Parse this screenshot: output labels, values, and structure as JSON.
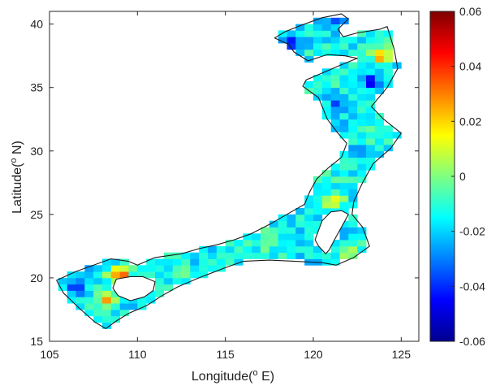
{
  "chart_data": {
    "type": "heatmap",
    "title": "",
    "xlabel": "Longitude(",
    "xlabel_sup": "o",
    "xlabel_tail": " E)",
    "ylabel": "Latitude(",
    "ylabel_sup": "o",
    "ylabel_tail": " N)",
    "xlim": [
      105,
      126
    ],
    "ylim": [
      15,
      41
    ],
    "xticks": [
      {
        "value": 105,
        "label": "105"
      },
      {
        "value": 110,
        "label": "110"
      },
      {
        "value": 115,
        "label": "115"
      },
      {
        "value": 120,
        "label": "120"
      },
      {
        "value": 125,
        "label": "125"
      }
    ],
    "yticks": [
      {
        "value": 15,
        "label": "15"
      },
      {
        "value": 20,
        "label": "20"
      },
      {
        "value": 25,
        "label": "25"
      },
      {
        "value": 30,
        "label": "30"
      },
      {
        "value": 35,
        "label": "35"
      },
      {
        "value": 40,
        "label": "40"
      }
    ],
    "colorbar": {
      "colormap": "jet",
      "range": [
        -0.06,
        0.06
      ],
      "ticks": [
        {
          "value": 0.06,
          "label": "0.06"
        },
        {
          "value": 0.04,
          "label": "0.04"
        },
        {
          "value": 0.02,
          "label": "0.02"
        },
        {
          "value": 0,
          "label": "0"
        },
        {
          "value": -0.02,
          "label": "-0.02"
        },
        {
          "value": -0.04,
          "label": "-0.04"
        },
        {
          "value": -0.06,
          "label": "-0.06"
        }
      ]
    },
    "field_mean": -0.015,
    "region_outline": [
      [
        106.5,
        20.5
      ],
      [
        108.5,
        21.5
      ],
      [
        109.5,
        21.3
      ],
      [
        110.0,
        21.0
      ],
      [
        111.0,
        21.6
      ],
      [
        112.5,
        21.9
      ],
      [
        113.5,
        22.3
      ],
      [
        114.5,
        22.6
      ],
      [
        115.5,
        23.0
      ],
      [
        116.5,
        23.5
      ],
      [
        117.5,
        24.2
      ],
      [
        118.5,
        25.0
      ],
      [
        119.5,
        25.8
      ],
      [
        119.8,
        26.8
      ],
      [
        120.2,
        27.8
      ],
      [
        120.8,
        28.6
      ],
      [
        121.6,
        29.5
      ],
      [
        121.9,
        30.6
      ],
      [
        121.4,
        31.4
      ],
      [
        120.8,
        32.5
      ],
      [
        120.3,
        34.2
      ],
      [
        119.4,
        35.1
      ],
      [
        119.6,
        35.6
      ],
      [
        120.6,
        36.2
      ],
      [
        121.6,
        36.8
      ],
      [
        122.5,
        37.3
      ],
      [
        121.8,
        37.5
      ],
      [
        120.8,
        37.6
      ],
      [
        119.7,
        37.1
      ],
      [
        118.9,
        37.8
      ],
      [
        118.6,
        38.4
      ],
      [
        117.8,
        38.9
      ],
      [
        118.4,
        39.4
      ],
      [
        119.3,
        39.9
      ],
      [
        120.5,
        40.5
      ],
      [
        121.6,
        40.8
      ],
      [
        122.0,
        40.4
      ],
      [
        121.4,
        39.6
      ],
      [
        121.7,
        39.0
      ],
      [
        122.5,
        39.3
      ],
      [
        123.8,
        39.6
      ],
      [
        124.2,
        39.8
      ],
      [
        124.6,
        38.0
      ],
      [
        124.8,
        36.5
      ],
      [
        124.2,
        35.0
      ],
      [
        123.3,
        33.5
      ],
      [
        124.0,
        32.5
      ],
      [
        125.0,
        31.4
      ],
      [
        124.4,
        30.2
      ],
      [
        123.4,
        29.0
      ],
      [
        122.8,
        27.5
      ],
      [
        122.3,
        26.0
      ],
      [
        122.2,
        25.0
      ],
      [
        122.8,
        24.0
      ],
      [
        123.2,
        22.5
      ],
      [
        122.3,
        21.6
      ],
      [
        121.3,
        21.0
      ],
      [
        120.5,
        21.2
      ],
      [
        119.0,
        21.3
      ],
      [
        117.5,
        21.4
      ],
      [
        116.0,
        21.3
      ],
      [
        115.0,
        20.8
      ],
      [
        113.5,
        20.0
      ],
      [
        112.3,
        19.3
      ],
      [
        111.4,
        18.6
      ],
      [
        110.5,
        17.8
      ],
      [
        109.5,
        17.2
      ],
      [
        108.8,
        16.6
      ],
      [
        108.2,
        16.0
      ],
      [
        107.6,
        16.5
      ],
      [
        106.7,
        17.6
      ],
      [
        105.8,
        18.8
      ],
      [
        105.4,
        19.8
      ],
      [
        106.5,
        20.5
      ]
    ],
    "islands": [
      {
        "name": "",
        "outline": [
          [
            108.6,
            19.2
          ],
          [
            108.8,
            19.9
          ],
          [
            109.6,
            20.1
          ],
          [
            110.3,
            20.1
          ],
          [
            111.0,
            19.7
          ],
          [
            110.9,
            19.0
          ],
          [
            110.4,
            18.5
          ],
          [
            109.6,
            18.2
          ],
          [
            108.9,
            18.6
          ],
          [
            108.6,
            19.2
          ]
        ]
      },
      {
        "name": "",
        "outline": [
          [
            120.1,
            23.0
          ],
          [
            120.5,
            24.5
          ],
          [
            121.0,
            25.2
          ],
          [
            121.6,
            25.3
          ],
          [
            122.0,
            25.0
          ],
          [
            121.6,
            24.0
          ],
          [
            121.2,
            23.0
          ],
          [
            120.9,
            22.2
          ],
          [
            120.7,
            21.9
          ],
          [
            120.3,
            22.5
          ],
          [
            120.1,
            23.0
          ]
        ]
      }
    ],
    "anomalies": [
      {
        "lon": 109.0,
        "lat": 20.2,
        "value": 0.04
      },
      {
        "lon": 108.4,
        "lat": 18.3,
        "value": 0.025
      },
      {
        "lon": 123.9,
        "lat": 37.5,
        "value": 0.035
      },
      {
        "lon": 106.5,
        "lat": 19.2,
        "value": -0.045
      },
      {
        "lon": 118.8,
        "lat": 38.6,
        "value": -0.04
      },
      {
        "lon": 123.2,
        "lat": 35.5,
        "value": -0.04
      },
      {
        "lon": 121.5,
        "lat": 34.0,
        "value": -0.035
      },
      {
        "lon": 120.5,
        "lat": 36.8,
        "value": -0.035
      },
      {
        "lon": 121.5,
        "lat": 40.2,
        "value": -0.035
      },
      {
        "lon": 117.5,
        "lat": 23.0,
        "value": 0.0
      },
      {
        "lon": 121.2,
        "lat": 26.0,
        "value": 0.005
      },
      {
        "lon": 122.0,
        "lat": 22.0,
        "value": 0.01
      },
      {
        "lon": 112.5,
        "lat": 20.5,
        "value": -0.005
      },
      {
        "lon": 107.0,
        "lat": 20.0,
        "value": -0.03
      },
      {
        "lon": 122.5,
        "lat": 30.0,
        "value": -0.025
      }
    ]
  }
}
